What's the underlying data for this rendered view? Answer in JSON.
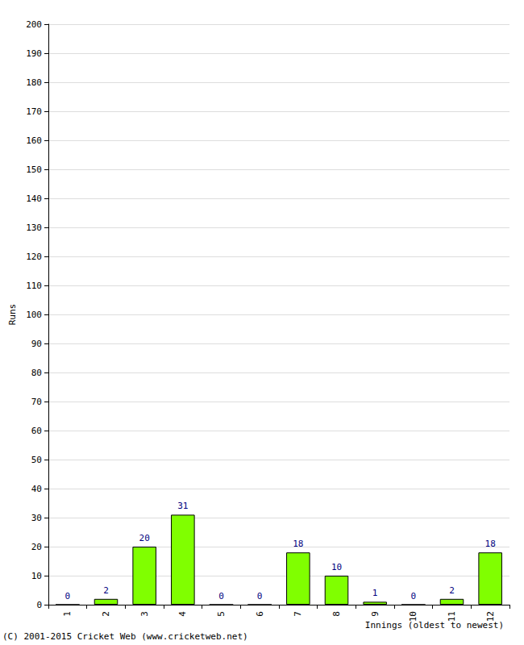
{
  "chart_data": {
    "type": "bar",
    "categories": [
      "1",
      "2",
      "3",
      "4",
      "5",
      "6",
      "7",
      "8",
      "9",
      "10",
      "11",
      "12"
    ],
    "values": [
      0,
      2,
      20,
      31,
      0,
      0,
      18,
      10,
      1,
      0,
      2,
      18
    ],
    "color": "#80ff00",
    "ylim": [
      0,
      200
    ],
    "yticks": [
      0,
      10,
      20,
      30,
      40,
      50,
      60,
      70,
      80,
      90,
      100,
      110,
      120,
      130,
      140,
      150,
      160,
      170,
      180,
      190,
      200
    ],
    "grid": true,
    "data_labels": true,
    "x_label": "Innings (oldest to newest)",
    "y_label": "Runs",
    "annotations": [
      "(C) 2001-2015 Cricket Web (www.cricketweb.net)"
    ]
  }
}
